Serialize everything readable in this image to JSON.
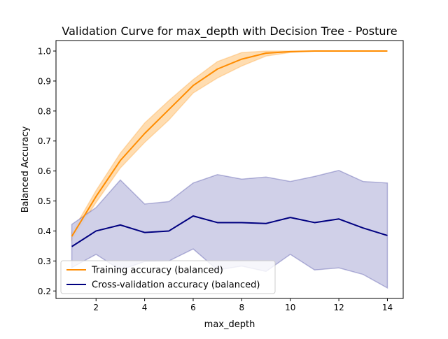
{
  "chart_data": {
    "type": "line",
    "title": "Validation Curve for max_depth with Decision Tree - Posture",
    "xlabel": "max_depth",
    "ylabel": "Balanced Accuracy",
    "xlim": [
      0.35,
      14.65
    ],
    "ylim": [
      0.175,
      1.035
    ],
    "xticks": [
      2,
      4,
      6,
      8,
      10,
      12,
      14
    ],
    "yticks": [
      0.2,
      0.3,
      0.4,
      0.5,
      0.6,
      0.7,
      0.8,
      0.9,
      1.0
    ],
    "ytick_labels": [
      "0.2",
      "0.3",
      "0.4",
      "0.5",
      "0.6",
      "0.7",
      "0.8",
      "0.9",
      "1.0"
    ],
    "grid": false,
    "legend_position": "lower-left",
    "x": [
      1,
      2,
      3,
      4,
      5,
      6,
      7,
      8,
      9,
      10,
      11,
      12,
      13,
      14
    ],
    "series": [
      {
        "name": "Training accuracy (balanced)",
        "color": "#ff8c00",
        "values": [
          0.382,
          0.515,
          0.635,
          0.725,
          0.805,
          0.885,
          0.94,
          0.973,
          0.993,
          0.998,
          1.0,
          1.0,
          1.0,
          1.0
        ],
        "band_upper": [
          0.395,
          0.535,
          0.66,
          0.76,
          0.835,
          0.905,
          0.965,
          0.995,
          1.0,
          1.0,
          1.0,
          1.0,
          1.0,
          1.0
        ],
        "band_lower": [
          0.37,
          0.495,
          0.61,
          0.695,
          0.77,
          0.86,
          0.91,
          0.95,
          0.983,
          0.995,
          1.0,
          1.0,
          1.0,
          1.0
        ],
        "band_color": "#ffd9a8"
      },
      {
        "name": "Cross-validation accuracy (balanced)",
        "color": "#000080",
        "values": [
          0.348,
          0.4,
          0.42,
          0.395,
          0.4,
          0.45,
          0.428,
          0.428,
          0.425,
          0.445,
          0.428,
          0.44,
          0.41,
          0.385
        ],
        "band_upper": [
          0.422,
          0.478,
          0.57,
          0.49,
          0.498,
          0.56,
          0.588,
          0.573,
          0.58,
          0.565,
          0.582,
          0.602,
          0.565,
          0.56
        ],
        "band_lower": [
          0.278,
          0.322,
          0.27,
          0.298,
          0.3,
          0.34,
          0.27,
          0.283,
          0.265,
          0.322,
          0.27,
          0.277,
          0.255,
          0.21
        ],
        "band_color": "#cbcbe5"
      }
    ]
  }
}
